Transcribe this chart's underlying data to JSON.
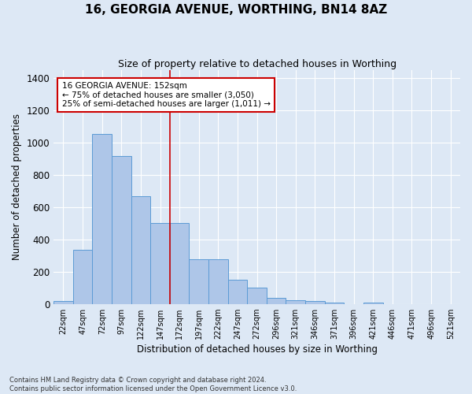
{
  "title": "16, GEORGIA AVENUE, WORTHING, BN14 8AZ",
  "subtitle": "Size of property relative to detached houses in Worthing",
  "xlabel": "Distribution of detached houses by size in Worthing",
  "ylabel": "Number of detached properties",
  "bar_labels": [
    "22sqm",
    "47sqm",
    "72sqm",
    "97sqm",
    "122sqm",
    "147sqm",
    "172sqm",
    "197sqm",
    "222sqm",
    "247sqm",
    "272sqm",
    "296sqm",
    "321sqm",
    "346sqm",
    "371sqm",
    "396sqm",
    "421sqm",
    "446sqm",
    "471sqm",
    "496sqm",
    "521sqm"
  ],
  "bar_values": [
    18,
    335,
    1057,
    920,
    670,
    500,
    500,
    275,
    275,
    148,
    100,
    40,
    22,
    18,
    10,
    0,
    10,
    0,
    0,
    0,
    0
  ],
  "bar_color": "#aec6e8",
  "bar_edge_color": "#5b9bd5",
  "vline_x": 5.5,
  "annotation_line1": "16 GEORGIA AVENUE: 152sqm",
  "annotation_line2": "← 75% of detached houses are smaller (3,050)",
  "annotation_line3": "25% of semi-detached houses are larger (1,011) →",
  "vline_color": "#cc0000",
  "annotation_box_color": "#ffffff",
  "annotation_box_edge": "#cc0000",
  "background_color": "#dde8f5",
  "plot_bg_color": "#dde8f5",
  "grid_color": "#ffffff",
  "ylim": [
    0,
    1450
  ],
  "yticks": [
    0,
    200,
    400,
    600,
    800,
    1000,
    1200,
    1400
  ],
  "footnote": "Contains HM Land Registry data © Crown copyright and database right 2024.\nContains public sector information licensed under the Open Government Licence v3.0."
}
